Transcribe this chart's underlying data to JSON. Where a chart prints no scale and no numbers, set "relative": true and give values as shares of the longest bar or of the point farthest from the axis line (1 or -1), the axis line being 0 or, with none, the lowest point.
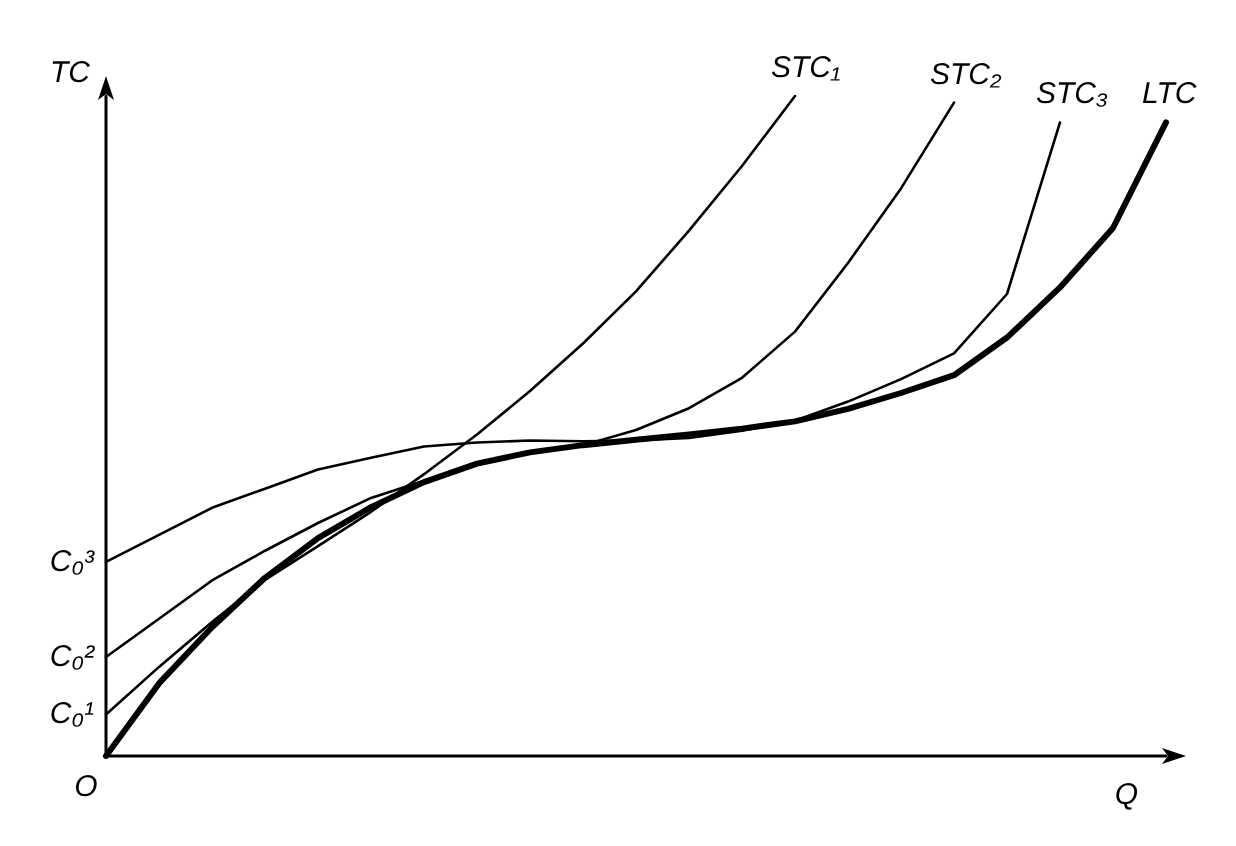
{
  "chart_data": {
    "type": "line",
    "relative": true,
    "xlabel": "Q",
    "ylabel": "TC",
    "marker": "none",
    "line_style": "solid",
    "categories": [
      null,
      null,
      null,
      null,
      null,
      null,
      null,
      null,
      null,
      null,
      null,
      null,
      null,
      null,
      null,
      null,
      null,
      null,
      null,
      null,
      null
    ],
    "series": [
      {
        "name": "STC₁",
        "color": "#000000",
        "values": [
          0.063,
          0.135,
          0.203,
          0.267,
          0.318,
          0.37,
          0.427,
          0.487,
          0.553,
          0.625,
          0.704,
          0.796,
          0.894,
          1.0,
          null,
          null,
          null,
          null,
          null,
          null,
          null
        ]
      },
      {
        "name": "STC₂",
        "color": "#000000",
        "values": [
          0.15,
          0.208,
          0.266,
          0.311,
          0.353,
          0.391,
          0.417,
          0.441,
          0.459,
          0.471,
          0.494,
          0.527,
          0.573,
          0.643,
          0.747,
          0.86,
          0.99,
          null,
          null,
          null,
          null
        ]
      },
      {
        "name": "STC₃",
        "color": "#000000",
        "values": [
          0.294,
          0.335,
          0.376,
          0.405,
          0.434,
          0.452,
          0.469,
          0.475,
          0.478,
          0.477,
          0.478,
          0.482,
          0.493,
          0.508,
          0.537,
          0.571,
          0.61,
          0.7,
          0.96,
          null,
          null
        ]
      },
      {
        "name": "LTC",
        "color": "#000000",
        "values": [
          0,
          0.11,
          0.195,
          0.27,
          0.33,
          0.377,
          0.415,
          0.443,
          0.46,
          0.471,
          0.479,
          0.487,
          0.496,
          0.507,
          0.526,
          0.55,
          0.577,
          0.634,
          0.71,
          0.8,
          0.96
        ]
      }
    ],
    "annotations": [
      "C₀¹",
      "C₀²",
      "C₀³",
      "O"
    ]
  }
}
